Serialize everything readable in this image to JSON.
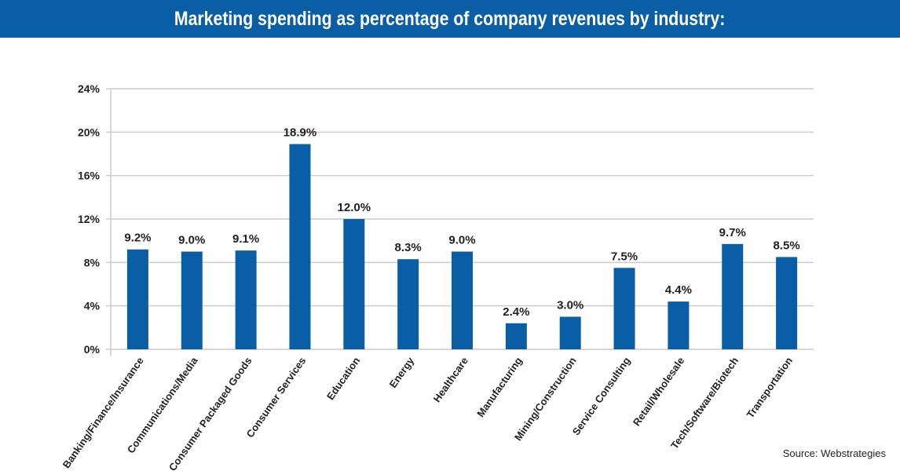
{
  "chart_data": {
    "type": "bar",
    "title": "Marketing spending as percentage of company revenues by industry:",
    "categories": [
      "Banking/Finance/Insurance",
      "Communications/Media",
      "Consumer Packaged Goods",
      "Consumer Services",
      "Education",
      "Energy",
      "Healthcare",
      "Manufacturing",
      "Mining/Construction",
      "Service Consulting",
      "Retail/Wholesale",
      "Tech/Software/Biotech",
      "Transportation"
    ],
    "values": [
      9.2,
      9.0,
      9.1,
      18.9,
      12.0,
      8.3,
      9.0,
      2.4,
      3.0,
      7.5,
      4.4,
      9.7,
      8.5
    ],
    "data_labels": [
      "9.2%",
      "9.0%",
      "9.1%",
      "18.9%",
      "12.0%",
      "8.3%",
      "9.0%",
      "2.4%",
      "3.0%",
      "7.5%",
      "4.4%",
      "9.7%",
      "8.5%"
    ],
    "yticks": [
      0,
      4,
      8,
      12,
      16,
      20,
      24
    ],
    "ytick_labels": [
      "0%",
      "4%",
      "8%",
      "12%",
      "16%",
      "20%",
      "24%"
    ],
    "ylim": [
      0,
      24
    ],
    "xlabel": "",
    "ylabel": "",
    "grid": true,
    "bar_color": "#0a5ea5",
    "grid_color": "#cccccc"
  },
  "source": "Source: Webstrategies"
}
